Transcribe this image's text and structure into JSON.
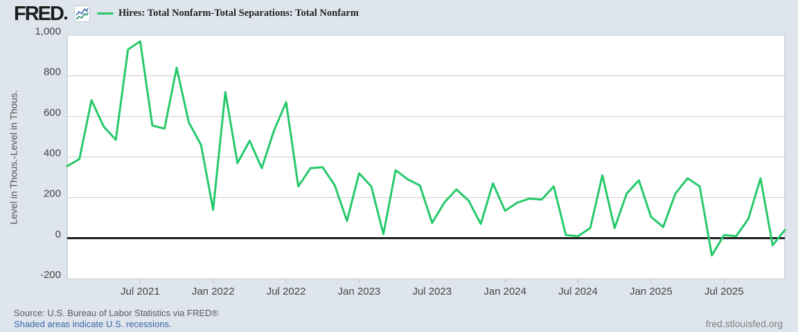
{
  "header": {
    "logo_text": "FRED",
    "legend_label": "Hires: Total Nonfarm-Total Separations: Total Nonfarm"
  },
  "footer": {
    "source_line": "Source: U.S. Bureau of Labor Statistics via FRED®",
    "recession_note": "Shaded areas indicate U.S. recessions.",
    "site_link": "fred.stlouisfed.org"
  },
  "colors": {
    "background": "#dfe5ed",
    "plot_background": "#ffffff",
    "gridline": "#c9c9c9",
    "axis_border": "#b9b9b9",
    "zero_line": "#000000",
    "series_green": "#26c96a",
    "link_blue": "#3a65a8",
    "icon_line_blue": "#3465a8",
    "icon_line_teal": "#1e8e66"
  },
  "chart_data": {
    "type": "line",
    "title": "Hires: Total Nonfarm-Total Separations: Total Nonfarm",
    "ylabel": "Level in Thous.-Level in Thous.",
    "xlabel": "",
    "ylim": [
      -200,
      1000
    ],
    "grid": "horizontal-only",
    "legend_position": "top-left",
    "line_color": "#26c96a",
    "yticks": [
      1000,
      800,
      600,
      400,
      200,
      0,
      -200
    ],
    "ytick_labels": [
      "1,000",
      "800",
      "600",
      "400",
      "200",
      "0",
      "-200"
    ],
    "xtick_labels": [
      "Jul 2021",
      "Jan 2022",
      "Jul 2022",
      "Jan 2023",
      "Jul 2023",
      "Jan 2024",
      "Jul 2024",
      "Jan 2025",
      "Jul 2025"
    ],
    "months": [
      "Jan 2021",
      "Feb 2021",
      "Mar 2021",
      "Apr 2021",
      "May 2021",
      "Jun 2021",
      "Jul 2021",
      "Aug 2021",
      "Sep 2021",
      "Oct 2021",
      "Nov 2021",
      "Dec 2021",
      "Jan 2022",
      "Feb 2022",
      "Mar 2022",
      "Apr 2022",
      "May 2022",
      "Jun 2022",
      "Jul 2022",
      "Aug 2022",
      "Sep 2022",
      "Oct 2022",
      "Nov 2022",
      "Dec 2022",
      "Jan 2023",
      "Feb 2023",
      "Mar 2023",
      "Apr 2023",
      "May 2023",
      "Jun 2023",
      "Jul 2023",
      "Aug 2023",
      "Sep 2023",
      "Oct 2023",
      "Nov 2023",
      "Dec 2023",
      "Jan 2024",
      "Feb 2024",
      "Mar 2024",
      "Apr 2024",
      "May 2024",
      "Jun 2024",
      "Jul 2024",
      "Aug 2024",
      "Sep 2024",
      "Oct 2024",
      "Nov 2024",
      "Dec 2024",
      "Jan 2025",
      "Feb 2025",
      "Mar 2025",
      "Apr 2025",
      "May 2025",
      "Jun 2025",
      "Jul 2025",
      "Aug 2025",
      "Sep 2025",
      "Oct 2025",
      "Nov 2025",
      "Dec 2025"
    ],
    "values": [
      355,
      390,
      680,
      550,
      485,
      930,
      970,
      555,
      540,
      840,
      570,
      460,
      140,
      720,
      370,
      480,
      345,
      530,
      670,
      255,
      345,
      350,
      260,
      85,
      320,
      255,
      20,
      335,
      290,
      260,
      75,
      175,
      240,
      185,
      70,
      270,
      135,
      175,
      195,
      190,
      255,
      15,
      10,
      50,
      310,
      50,
      220,
      285,
      105,
      55,
      220,
      295,
      255,
      -85,
      15,
      10,
      95,
      295,
      -35,
      40
    ]
  }
}
